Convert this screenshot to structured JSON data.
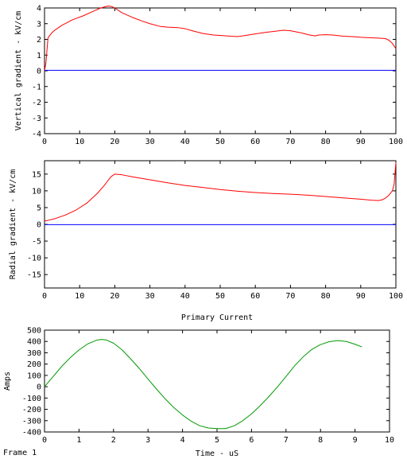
{
  "frame_label": "Frame 1",
  "chart_data": [
    {
      "type": "line",
      "title": "",
      "xlabel": "",
      "ylabel": "Vertical gradient - kV/cm",
      "xlim": [
        0,
        100
      ],
      "ylim": [
        -4,
        4
      ],
      "xticks": [
        0,
        10,
        20,
        30,
        40,
        50,
        60,
        70,
        80,
        90,
        100
      ],
      "yticks": [
        -4,
        -3,
        -2,
        -1,
        0,
        1,
        2,
        3,
        4
      ],
      "grid": false,
      "series": [
        {
          "color": "#ff0000",
          "x": [
            0,
            0.4,
            0.8,
            1,
            2,
            3,
            5,
            8,
            11,
            14,
            16,
            18,
            19,
            20,
            22,
            25,
            28,
            30,
            33,
            35,
            38,
            40,
            42,
            45,
            48,
            50,
            53,
            55,
            58,
            60,
            63,
            65,
            68,
            70,
            73,
            75,
            77,
            78,
            80,
            82,
            85,
            88,
            90,
            93,
            95,
            97,
            98,
            99,
            100
          ],
          "y": [
            0,
            0.5,
            1.6,
            2.1,
            2.4,
            2.6,
            2.9,
            3.25,
            3.5,
            3.8,
            4.0,
            4.12,
            4.1,
            4.0,
            3.7,
            3.4,
            3.15,
            3.0,
            2.82,
            2.78,
            2.75,
            2.68,
            2.55,
            2.38,
            2.28,
            2.25,
            2.2,
            2.18,
            2.28,
            2.35,
            2.45,
            2.5,
            2.58,
            2.55,
            2.42,
            2.3,
            2.22,
            2.28,
            2.3,
            2.28,
            2.2,
            2.17,
            2.13,
            2.1,
            2.08,
            2.05,
            1.95,
            1.75,
            1.4
          ]
        },
        {
          "color": "#0000ff",
          "x": [
            0,
            100
          ],
          "y": [
            0.03,
            0.03
          ]
        }
      ]
    },
    {
      "type": "line",
      "title": "",
      "xlabel": "",
      "ylabel": "Radial gradient - kV/cm",
      "xlim": [
        0,
        100
      ],
      "ylim": [
        -19,
        19
      ],
      "xticks": [
        0,
        10,
        20,
        30,
        40,
        50,
        60,
        70,
        80,
        90,
        100
      ],
      "yticks": [
        -15,
        -10,
        -5,
        0,
        5,
        10,
        15
      ],
      "grid": false,
      "series": [
        {
          "color": "#ff0000",
          "x": [
            0,
            1,
            3,
            6,
            9,
            12,
            15,
            17,
            18,
            19,
            20,
            22,
            25,
            30,
            35,
            40,
            45,
            50,
            55,
            60,
            65,
            70,
            75,
            80,
            85,
            90,
            93,
            95,
            96,
            97,
            98,
            99,
            99.5,
            100
          ],
          "y": [
            1.0,
            1.2,
            1.7,
            2.8,
            4.3,
            6.3,
            9.2,
            11.6,
            13.0,
            14.3,
            15.0,
            14.8,
            14.2,
            13.3,
            12.4,
            11.6,
            11.0,
            10.4,
            9.9,
            9.5,
            9.2,
            9.0,
            8.7,
            8.3,
            7.9,
            7.5,
            7.2,
            7.1,
            7.3,
            7.8,
            8.7,
            10.0,
            12.0,
            18.5
          ]
        },
        {
          "color": "#0000ff",
          "x": [
            0,
            100
          ],
          "y": [
            -0.1,
            -0.1
          ]
        }
      ]
    },
    {
      "type": "line",
      "title": "Primary Current",
      "xlabel": "Time - uS",
      "ylabel": "Amps",
      "xlim": [
        0,
        10
      ],
      "ylim": [
        -400,
        500
      ],
      "xticks": [
        0,
        1,
        2,
        3,
        4,
        5,
        6,
        7,
        8,
        9,
        10
      ],
      "yticks": [
        -400,
        -300,
        -200,
        -100,
        0,
        100,
        200,
        300,
        400,
        500
      ],
      "grid": false,
      "series": [
        {
          "color": "#009900",
          "x": [
            0,
            0.25,
            0.5,
            0.75,
            1.0,
            1.25,
            1.5,
            1.65,
            1.8,
            2.0,
            2.25,
            2.5,
            2.75,
            3.0,
            3.25,
            3.5,
            3.75,
            4.0,
            4.25,
            4.5,
            4.75,
            5.0,
            5.25,
            5.5,
            5.75,
            6.0,
            6.25,
            6.5,
            6.75,
            7.0,
            7.25,
            7.5,
            7.75,
            8.0,
            8.25,
            8.5,
            8.75,
            9.0,
            9.2
          ],
          "y": [
            0,
            90,
            180,
            258,
            325,
            378,
            410,
            418,
            412,
            385,
            325,
            245,
            160,
            68,
            -22,
            -108,
            -185,
            -250,
            -305,
            -345,
            -365,
            -370,
            -370,
            -345,
            -300,
            -240,
            -168,
            -88,
            -2,
            90,
            185,
            265,
            330,
            372,
            398,
            408,
            400,
            375,
            352
          ]
        }
      ]
    }
  ]
}
